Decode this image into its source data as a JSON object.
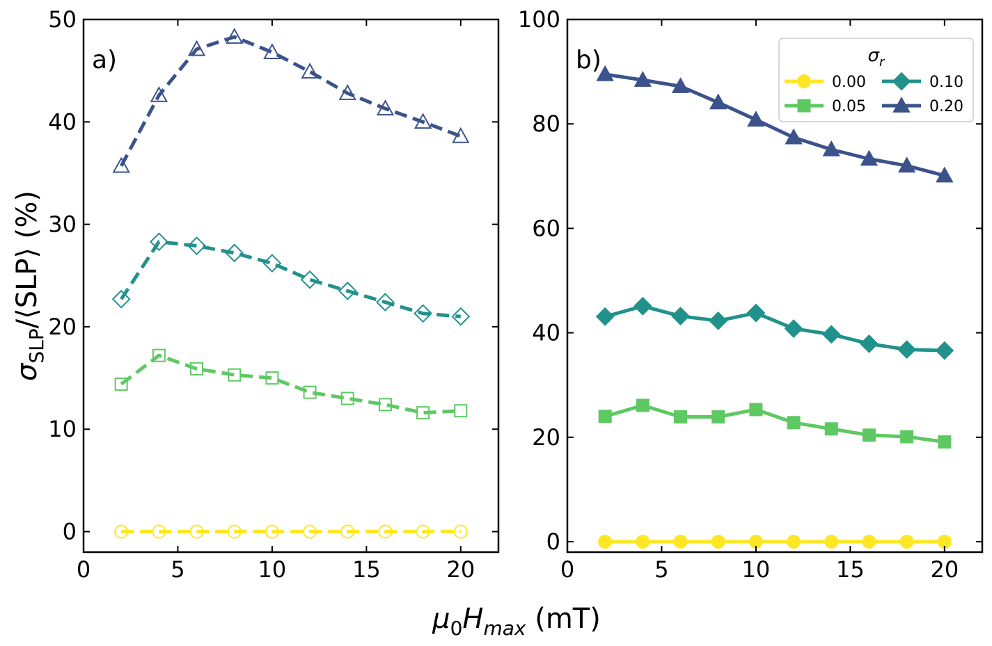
{
  "figure": {
    "ylabel_main": "σ",
    "ylabel_sub": "SLP",
    "ylabel_rest": "/⟨SLP⟩ (%)",
    "xlabel_main": "μ",
    "xlabel_sub0": "0",
    "xlabel_H": "H",
    "xlabel_sub": "max",
    "xlabel_rest": " (mT)"
  },
  "legend": {
    "title_symbol": "σ",
    "title_sub": "r",
    "entries": [
      {
        "label": "0.00",
        "color": "#fde725",
        "marker": "circle"
      },
      {
        "label": "0.05",
        "color": "#5ec962",
        "marker": "square"
      },
      {
        "label": "0.10",
        "color": "#21918c",
        "marker": "diamond"
      },
      {
        "label": "0.20",
        "color": "#3b528b",
        "marker": "triangle"
      }
    ]
  },
  "chart_data": [
    {
      "type": "line",
      "panel_label": "a)",
      "line_style": "dashed",
      "marker_fill": "open",
      "xlim": [
        0,
        22
      ],
      "ylim": [
        -2,
        50
      ],
      "xticks": [
        0,
        5,
        10,
        15,
        20
      ],
      "yticks": [
        0,
        10,
        20,
        30,
        40,
        50
      ],
      "xticklabels": [
        "0",
        "5",
        "10",
        "15",
        "20"
      ],
      "yticklabels": [
        "0",
        "10",
        "20",
        "30",
        "40",
        "50"
      ],
      "x": [
        2,
        4,
        6,
        8,
        10,
        12,
        14,
        16,
        18,
        20
      ],
      "series": [
        {
          "name": "0.00",
          "color": "#fde725",
          "marker": "circle",
          "values": [
            0,
            0,
            0,
            0,
            0,
            0,
            0,
            0,
            0,
            0
          ]
        },
        {
          "name": "0.05",
          "color": "#5ec962",
          "marker": "square",
          "values": [
            14.4,
            17.2,
            15.9,
            15.3,
            15.0,
            13.6,
            13.0,
            12.4,
            11.6,
            11.8
          ]
        },
        {
          "name": "0.10",
          "color": "#21918c",
          "marker": "diamond",
          "values": [
            22.7,
            28.3,
            27.9,
            27.2,
            26.2,
            24.6,
            23.5,
            22.4,
            21.3,
            21.0
          ]
        },
        {
          "name": "0.20",
          "color": "#3b528b",
          "marker": "triangle",
          "values": [
            35.7,
            42.6,
            47.1,
            48.3,
            46.8,
            44.9,
            42.8,
            41.3,
            40.0,
            38.6
          ]
        }
      ]
    },
    {
      "type": "line",
      "panel_label": "b)",
      "line_style": "solid",
      "marker_fill": "filled",
      "xlim": [
        0,
        22
      ],
      "ylim": [
        -2,
        100
      ],
      "xticks": [
        0,
        5,
        10,
        15,
        20
      ],
      "yticks": [
        0,
        20,
        40,
        60,
        80,
        100
      ],
      "xticklabels": [
        "0",
        "5",
        "10",
        "15",
        "20"
      ],
      "yticklabels": [
        "0",
        "20",
        "40",
        "60",
        "80",
        "100"
      ],
      "x": [
        2,
        4,
        6,
        8,
        10,
        12,
        14,
        16,
        18,
        20
      ],
      "series": [
        {
          "name": "0.00",
          "color": "#fde725",
          "marker": "circle",
          "values": [
            0,
            0,
            0,
            0,
            0,
            0,
            0,
            0,
            0,
            0
          ]
        },
        {
          "name": "0.05",
          "color": "#5ec962",
          "marker": "square",
          "values": [
            24.0,
            26.1,
            23.9,
            23.9,
            25.3,
            22.8,
            21.6,
            20.4,
            20.1,
            19.1
          ]
        },
        {
          "name": "0.10",
          "color": "#21918c",
          "marker": "diamond",
          "values": [
            43.1,
            45.1,
            43.2,
            42.3,
            43.8,
            40.8,
            39.7,
            37.9,
            36.8,
            36.6
          ]
        },
        {
          "name": "0.20",
          "color": "#3b528b",
          "marker": "triangle",
          "values": [
            89.5,
            88.4,
            87.2,
            84.1,
            80.8,
            77.4,
            75.1,
            73.3,
            72.0,
            70.1
          ]
        }
      ]
    }
  ]
}
